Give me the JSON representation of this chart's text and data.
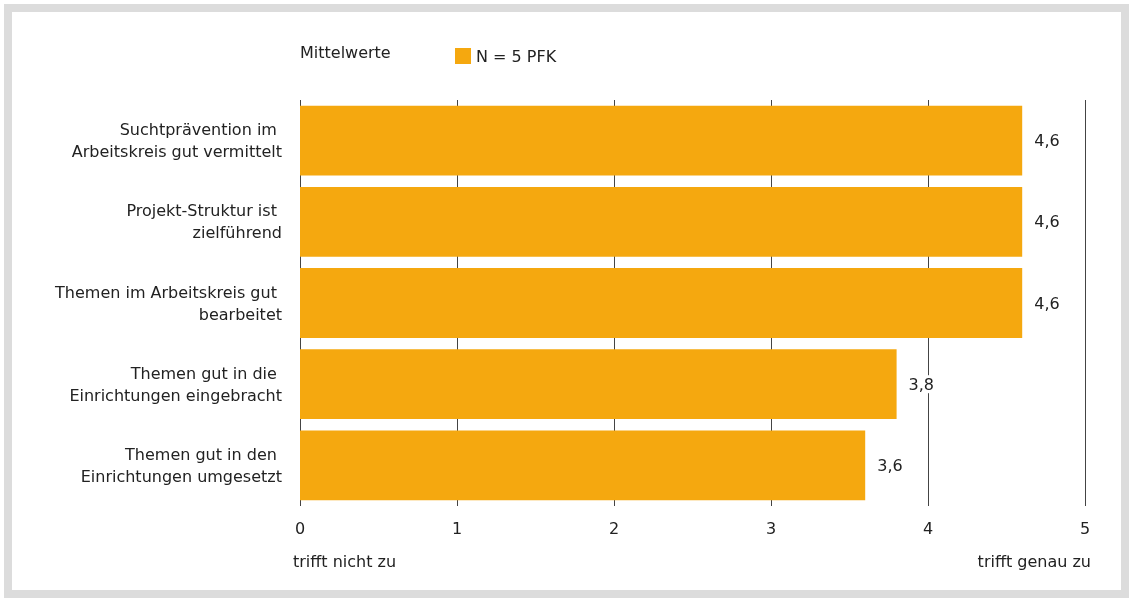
{
  "chart_data": {
    "type": "bar",
    "orientation": "horizontal",
    "legend_title": "Mittelwerte",
    "legend": "top left",
    "categories": [
      "Suchtprävention im Arbeitskreis gut vermittelt",
      "Projekt-Struktur ist zielführend",
      "Themen im Arbeitskreis gut bearbeitet",
      "Themen gut in die Einrichtungen eingebracht",
      "Themen gut in den Einrichtungen umgesetzt"
    ],
    "series": [
      {
        "name": "N = 5 PFK",
        "color": "#f5a80f",
        "values": [
          4.6,
          4.6,
          4.6,
          3.8,
          3.6
        ],
        "value_labels": [
          "4,6",
          "4,6",
          "4,6",
          "3,8",
          "3,6"
        ]
      }
    ],
    "xlim": [
      0,
      5
    ],
    "xticks": [
      0,
      1,
      2,
      3,
      4,
      5
    ],
    "grid": "x",
    "annotations": [
      "trifft nicht zu",
      "trifft genau zu"
    ]
  }
}
